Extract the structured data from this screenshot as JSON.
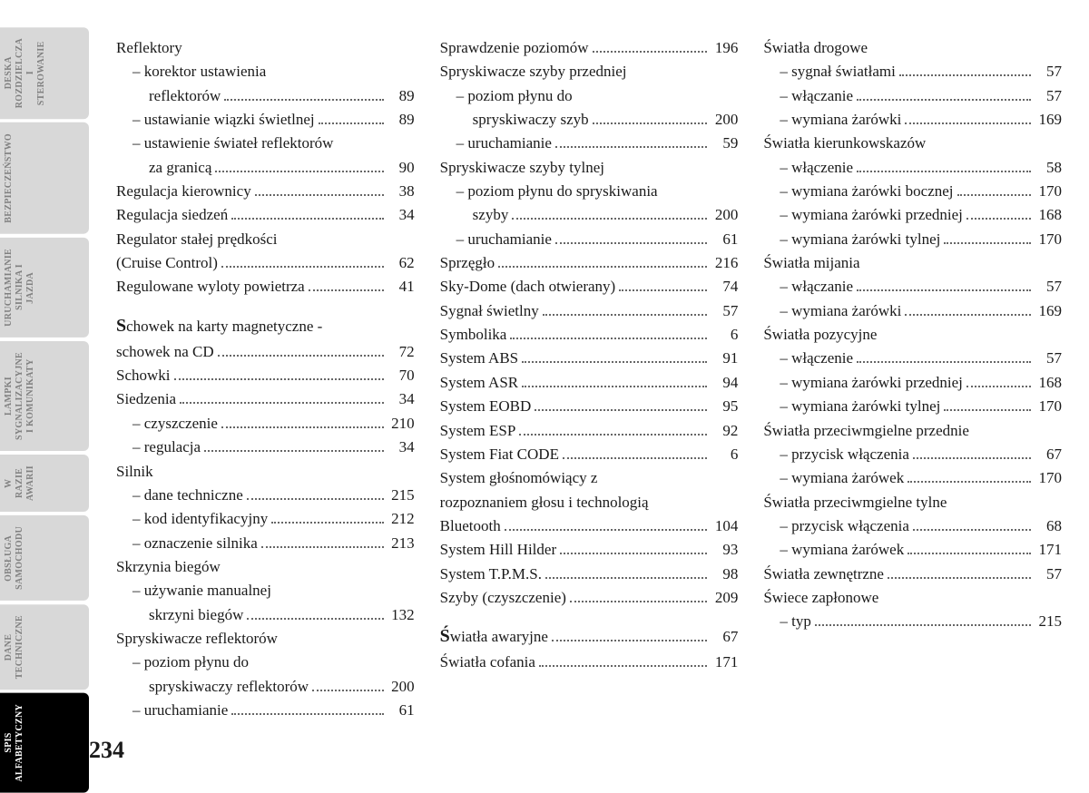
{
  "page_number": "234",
  "tabs": [
    {
      "label": "DESKA\nROZDZIELCZA\nI STEROWANIE",
      "style": "light"
    },
    {
      "label": "BEZPIECZEŃSTWO",
      "style": "light"
    },
    {
      "label": "URUCHAMIANIE\nSILNIKA I JAZDA",
      "style": "light"
    },
    {
      "label": "LAMPKI\nSYGNALIZACYJNE\nI KOMUNIKATY",
      "style": "light"
    },
    {
      "label": "W RAZIE AWARII",
      "style": "light"
    },
    {
      "label": "OBSŁUGA\nSAMOCHODU",
      "style": "light"
    },
    {
      "label": "DANE\nTECHNICZNE",
      "style": "light"
    },
    {
      "label": "SPIS\nALFABETYCZNY",
      "style": "dark"
    }
  ],
  "columns": [
    [
      {
        "label": "Reflektory",
        "page": "",
        "indent": 0
      },
      {
        "label": "– korektor ustawienia",
        "page": "",
        "indent": 1
      },
      {
        "label": "reflektorów",
        "page": "89",
        "indent": 2
      },
      {
        "label": "– ustawianie wiązki świetlnej",
        "page": "89",
        "indent": 1
      },
      {
        "label": "– ustawienie świateł reflektorów",
        "page": "",
        "indent": 1
      },
      {
        "label": "za granicą",
        "page": "90",
        "indent": 2
      },
      {
        "label": "Regulacja kierownicy",
        "page": "38",
        "indent": 0
      },
      {
        "label": "Regulacja siedzeń",
        "page": "34",
        "indent": 0
      },
      {
        "label": "Regulator stałej prędkości",
        "page": "",
        "indent": 0
      },
      {
        "label": "(Cruise Control)",
        "page": "62",
        "indent": 0
      },
      {
        "label": "Regulowane wyloty powietrza",
        "page": "41",
        "indent": 0
      },
      {
        "spacer": true
      },
      {
        "label": "Schowek na karty magnetyczne -",
        "page": "",
        "indent": 0,
        "big": "S"
      },
      {
        "label": "schowek na CD",
        "page": "72",
        "indent": 0
      },
      {
        "label": "Schowki",
        "page": "70",
        "indent": 0
      },
      {
        "label": "Siedzenia",
        "page": "34",
        "indent": 0
      },
      {
        "label": "– czyszczenie",
        "page": "210",
        "indent": 1
      },
      {
        "label": "– regulacja",
        "page": "34",
        "indent": 1
      },
      {
        "label": "Silnik",
        "page": "",
        "indent": 0
      },
      {
        "label": "– dane techniczne",
        "page": "215",
        "indent": 1
      },
      {
        "label": "– kod identyfikacyjny",
        "page": "212",
        "indent": 1
      },
      {
        "label": "– oznaczenie silnika",
        "page": "213",
        "indent": 1
      },
      {
        "label": "Skrzynia biegów",
        "page": "",
        "indent": 0
      },
      {
        "label": "– używanie manualnej",
        "page": "",
        "indent": 1
      },
      {
        "label": "skrzyni biegów",
        "page": "132",
        "indent": 2
      },
      {
        "label": "Spryskiwacze reflektorów",
        "page": "",
        "indent": 0
      },
      {
        "label": "– poziom płynu do",
        "page": "",
        "indent": 1
      },
      {
        "label": "spryskiwaczy reflektorów",
        "page": "200",
        "indent": 2
      },
      {
        "label": "– uruchamianie",
        "page": "61",
        "indent": 1
      }
    ],
    [
      {
        "label": "Sprawdzenie poziomów",
        "page": "196",
        "indent": 0
      },
      {
        "label": "Spryskiwacze szyby przedniej",
        "page": "",
        "indent": 0
      },
      {
        "label": "– poziom płynu do",
        "page": "",
        "indent": 1
      },
      {
        "label": "spryskiwaczy szyb",
        "page": "200",
        "indent": 2
      },
      {
        "label": "– uruchamianie",
        "page": "59",
        "indent": 1
      },
      {
        "label": "Spryskiwacze szyby tylnej",
        "page": "",
        "indent": 0
      },
      {
        "label": "– poziom płynu do spryskiwania",
        "page": "",
        "indent": 1
      },
      {
        "label": "szyby",
        "page": "200",
        "indent": 2
      },
      {
        "label": "– uruchamianie",
        "page": "61",
        "indent": 1
      },
      {
        "label": "Sprzęgło",
        "page": "216",
        "indent": 0
      },
      {
        "label": "Sky-Dome (dach otwierany)",
        "page": "74",
        "indent": 0
      },
      {
        "label": "Sygnał świetlny",
        "page": "57",
        "indent": 0
      },
      {
        "label": "Symbolika",
        "page": "6",
        "indent": 0
      },
      {
        "label": "System ABS",
        "page": "91",
        "indent": 0
      },
      {
        "label": "System ASR",
        "page": "94",
        "indent": 0
      },
      {
        "label": "System EOBD",
        "page": "95",
        "indent": 0
      },
      {
        "label": "System ESP",
        "page": "92",
        "indent": 0
      },
      {
        "label": "System Fiat CODE",
        "page": "6",
        "indent": 0
      },
      {
        "label": "System głośnomówiący z",
        "page": "",
        "indent": 0
      },
      {
        "label": "rozpoznaniem głosu i technologią",
        "page": "",
        "indent": 0
      },
      {
        "label": "Bluetooth",
        "page": "104",
        "indent": 0
      },
      {
        "label": "System Hill Hilder",
        "page": "93",
        "indent": 0
      },
      {
        "label": "System T.P.M.S.",
        "page": "98",
        "indent": 0
      },
      {
        "label": "Szyby (czyszczenie)",
        "page": "209",
        "indent": 0
      },
      {
        "spacer": true
      },
      {
        "label": "Światła awaryjne",
        "page": "67",
        "indent": 0,
        "big": "Ś"
      },
      {
        "label": "Światła cofania",
        "page": "171",
        "indent": 0
      }
    ],
    [
      {
        "label": "Światła drogowe",
        "page": "",
        "indent": 0
      },
      {
        "label": "– sygnał światłami",
        "page": "57",
        "indent": 1
      },
      {
        "label": "– włączanie",
        "page": "57",
        "indent": 1
      },
      {
        "label": "– wymiana żarówki",
        "page": "169",
        "indent": 1
      },
      {
        "label": "Światła kierunkowskazów",
        "page": "",
        "indent": 0
      },
      {
        "label": "– włączenie",
        "page": "58",
        "indent": 1
      },
      {
        "label": "– wymiana żarówki bocznej",
        "page": "170",
        "indent": 1
      },
      {
        "label": "– wymiana żarówki przedniej",
        "page": "168",
        "indent": 1
      },
      {
        "label": "– wymiana żarówki tylnej",
        "page": "170",
        "indent": 1
      },
      {
        "label": "Światła mijania",
        "page": "",
        "indent": 0
      },
      {
        "label": "– włączanie",
        "page": "57",
        "indent": 1
      },
      {
        "label": "– wymiana żarówki",
        "page": "169",
        "indent": 1
      },
      {
        "label": "Światła pozycyjne",
        "page": "",
        "indent": 0
      },
      {
        "label": "– włączenie",
        "page": "57",
        "indent": 1
      },
      {
        "label": "– wymiana żarówki przedniej",
        "page": "168",
        "indent": 1
      },
      {
        "label": "– wymiana żarówki tylnej",
        "page": "170",
        "indent": 1
      },
      {
        "label": "Światła przeciwmgielne przednie",
        "page": "",
        "indent": 0
      },
      {
        "label": "– przycisk włączenia",
        "page": "67",
        "indent": 1
      },
      {
        "label": "– wymiana żarówek",
        "page": "170",
        "indent": 1
      },
      {
        "label": "Światła przeciwmgielne tylne",
        "page": "",
        "indent": 0
      },
      {
        "label": "– przycisk włączenia",
        "page": "68",
        "indent": 1
      },
      {
        "label": "– wymiana żarówek",
        "page": "171",
        "indent": 1
      },
      {
        "label": "Światła zewnętrzne",
        "page": "57",
        "indent": 0
      },
      {
        "label": "Świece zapłonowe",
        "page": "",
        "indent": 0
      },
      {
        "label": "– typ",
        "page": "215",
        "indent": 1
      }
    ]
  ]
}
